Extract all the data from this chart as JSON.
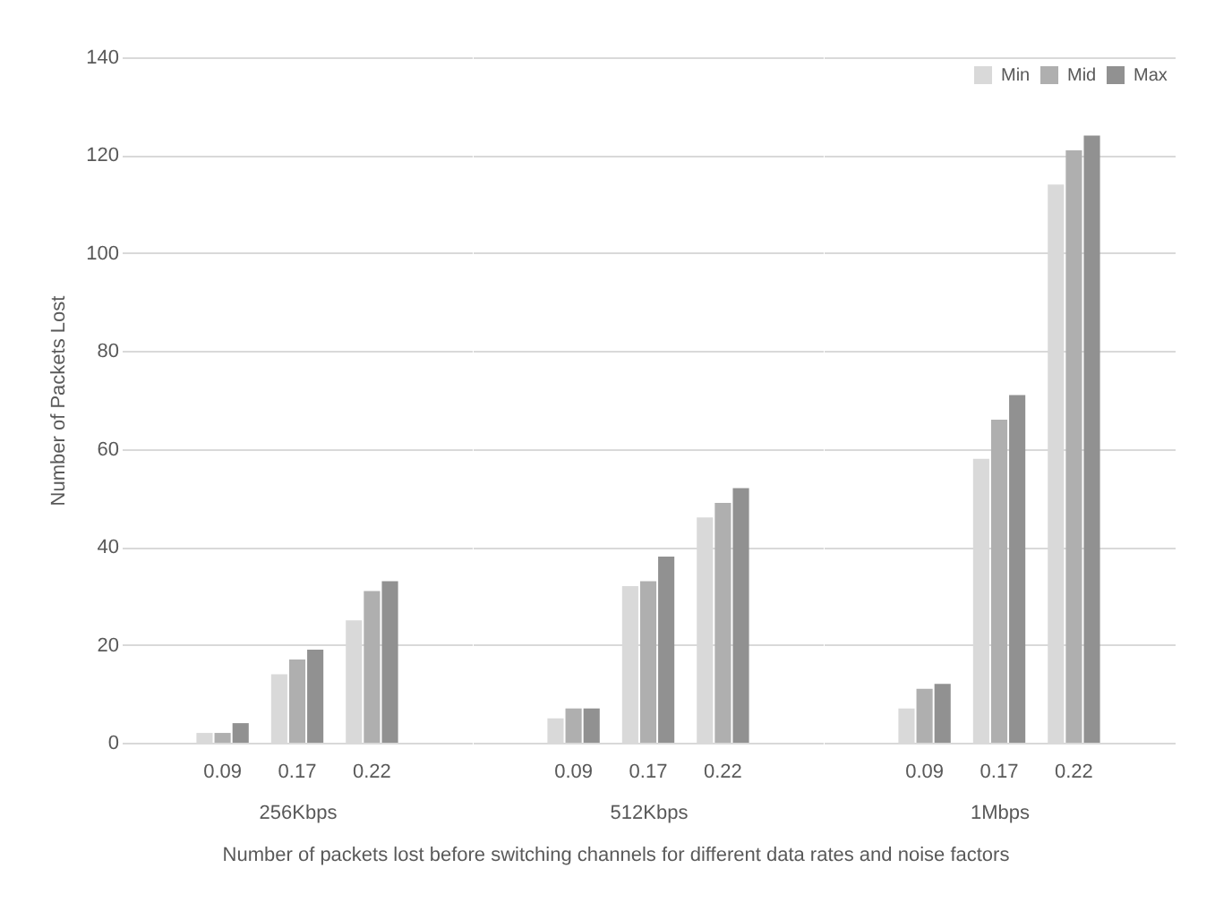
{
  "chart_data": [
    {
      "type": "bar",
      "xlabel": "256Kbps",
      "ylabel": "Number of Packets Lost",
      "categories": [
        "0.09",
        "0.17",
        "0.22"
      ],
      "ylim": [
        0,
        140
      ],
      "yticks": [
        0,
        20,
        40,
        60,
        80,
        100,
        120,
        140
      ],
      "grid": "y",
      "series": [
        {
          "color": "#d9d9d9",
          "values": [
            2,
            14,
            25
          ]
        },
        {
          "color": "#afafaf",
          "values": [
            2,
            17,
            31
          ]
        },
        {
          "color": "#919191",
          "values": [
            4,
            19,
            33
          ]
        }
      ]
    },
    {
      "type": "bar",
      "xlabel": "512Kbps",
      "categories": [
        "0.09",
        "0.17",
        "0.22"
      ],
      "ylim": [
        0,
        140
      ],
      "yticks": [
        0,
        20,
        40,
        60,
        80,
        100,
        120,
        140
      ],
      "grid": "y",
      "tick_labels": "x",
      "annotations": [
        "Number of packets lost before switching channels for different data rates and noise factors"
      ],
      "series": [
        {
          "color": "#d9d9d9",
          "values": [
            5,
            32,
            46
          ]
        },
        {
          "color": "#afafaf",
          "values": [
            7,
            33,
            49
          ]
        },
        {
          "color": "#919191",
          "values": [
            7,
            38,
            52
          ]
        }
      ]
    },
    {
      "type": "bar",
      "xlabel": "1Mbps",
      "categories": [
        "0.09",
        "0.17",
        "0.22"
      ],
      "ylim": [
        0,
        140
      ],
      "yticks": [
        0,
        20,
        40,
        60,
        80,
        100,
        120,
        140
      ],
      "grid": "y",
      "tick_labels": "x",
      "legend": "top right",
      "series": [
        {
          "name": "Min",
          "color": "#d9d9d9",
          "values": [
            7,
            58,
            114
          ]
        },
        {
          "name": "Mid",
          "color": "#afafaf",
          "values": [
            11,
            66,
            121
          ]
        },
        {
          "name": "Max",
          "color": "#919191",
          "values": [
            12,
            71,
            124
          ]
        }
      ]
    }
  ]
}
